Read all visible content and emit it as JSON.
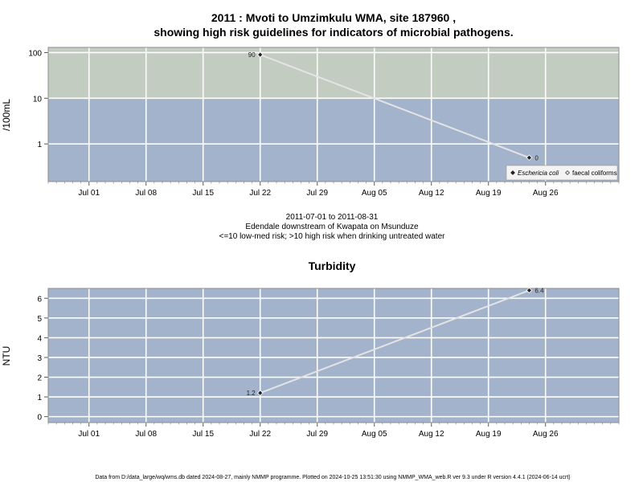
{
  "chart_data": [
    {
      "type": "line",
      "title_line1": "2011 : Mvoti to Umzimkulu WMA, site 187960 ,",
      "title_line2": "showing high risk guidelines for indicators of microbial pathogens.",
      "ylabel": "/100mL",
      "y_scale": "log",
      "ylim": [
        0.15,
        130
      ],
      "y_ticks": [
        {
          "value": 1,
          "label": "1"
        },
        {
          "value": 10,
          "label": "10"
        },
        {
          "value": 100,
          "label": "100"
        }
      ],
      "xlim": [
        "2011-06-26",
        "2011-09-04"
      ],
      "x_ticks": [
        {
          "date": "2011-07-01",
          "label": "Jul 01"
        },
        {
          "date": "2011-07-08",
          "label": "Jul 08"
        },
        {
          "date": "2011-07-15",
          "label": "Jul 15"
        },
        {
          "date": "2011-07-22",
          "label": "Jul 22"
        },
        {
          "date": "2011-07-29",
          "label": "Jul 29"
        },
        {
          "date": "2011-08-05",
          "label": "Aug 05"
        },
        {
          "date": "2011-08-12",
          "label": "Aug 12"
        },
        {
          "date": "2011-08-19",
          "label": "Aug 19"
        },
        {
          "date": "2011-08-26",
          "label": "Aug 26"
        }
      ],
      "risk_bands": [
        {
          "from": 10,
          "to": 130,
          "color": "#c2ccc1",
          "meaning": "high"
        },
        {
          "from": 0.15,
          "to": 10,
          "color": "#a2b3cb",
          "meaning": "low-med"
        }
      ],
      "series": [
        {
          "name": "Eschericia coli",
          "marker": "filled-diamond",
          "points": [
            {
              "x": "2011-07-22",
              "y": 90,
              "label": "90"
            },
            {
              "x": "2011-08-24",
              "y": 0.5,
              "label": "0"
            }
          ]
        }
      ],
      "legend": {
        "position": "bottom-right",
        "entries": [
          {
            "label": "Eschericia coli",
            "marker": "filled-diamond",
            "italic": true
          },
          {
            "label": "faecal coliforms",
            "marker": "open-diamond",
            "italic": false
          }
        ]
      },
      "subtitle_lines": [
        "2011-07-01 to 2011-08-31",
        "Edendale downstream of Kwapata on Msunduze",
        "<=10 low-med risk; >10 high risk when drinking untreated water"
      ]
    },
    {
      "type": "line",
      "title": "Turbidity",
      "ylabel": "NTU",
      "ylim": [
        -0.3,
        6.5
      ],
      "y_ticks": [
        {
          "value": 0,
          "label": "0"
        },
        {
          "value": 1,
          "label": "1"
        },
        {
          "value": 2,
          "label": "2"
        },
        {
          "value": 3,
          "label": "3"
        },
        {
          "value": 4,
          "label": "4"
        },
        {
          "value": 5,
          "label": "5"
        },
        {
          "value": 6,
          "label": "6"
        }
      ],
      "xlim": [
        "2011-06-26",
        "2011-09-04"
      ],
      "x_ticks": [
        {
          "date": "2011-07-01",
          "label": "Jul 01"
        },
        {
          "date": "2011-07-08",
          "label": "Jul 08"
        },
        {
          "date": "2011-07-15",
          "label": "Jul 15"
        },
        {
          "date": "2011-07-22",
          "label": "Jul 22"
        },
        {
          "date": "2011-07-29",
          "label": "Jul 29"
        },
        {
          "date": "2011-08-05",
          "label": "Aug 05"
        },
        {
          "date": "2011-08-12",
          "label": "Aug 12"
        },
        {
          "date": "2011-08-19",
          "label": "Aug 19"
        },
        {
          "date": "2011-08-26",
          "label": "Aug 26"
        }
      ],
      "background_color": "#a2b3cb",
      "series": [
        {
          "marker": "filled-diamond",
          "points": [
            {
              "x": "2011-07-22",
              "y": 1.2,
              "label": "1.2"
            },
            {
              "x": "2011-08-24",
              "y": 6.4,
              "label": "6.4"
            }
          ]
        }
      ]
    }
  ],
  "footer": "Data from D:/data_large/wq/wms.db dated 2024-08-27, mainly NMMP programme. Plotted on 2024-10-25 13:51:30 using NMMP_WMA_web.R ver 9.3 under R version 4.4.1 (2024-06-14 ucrt)"
}
